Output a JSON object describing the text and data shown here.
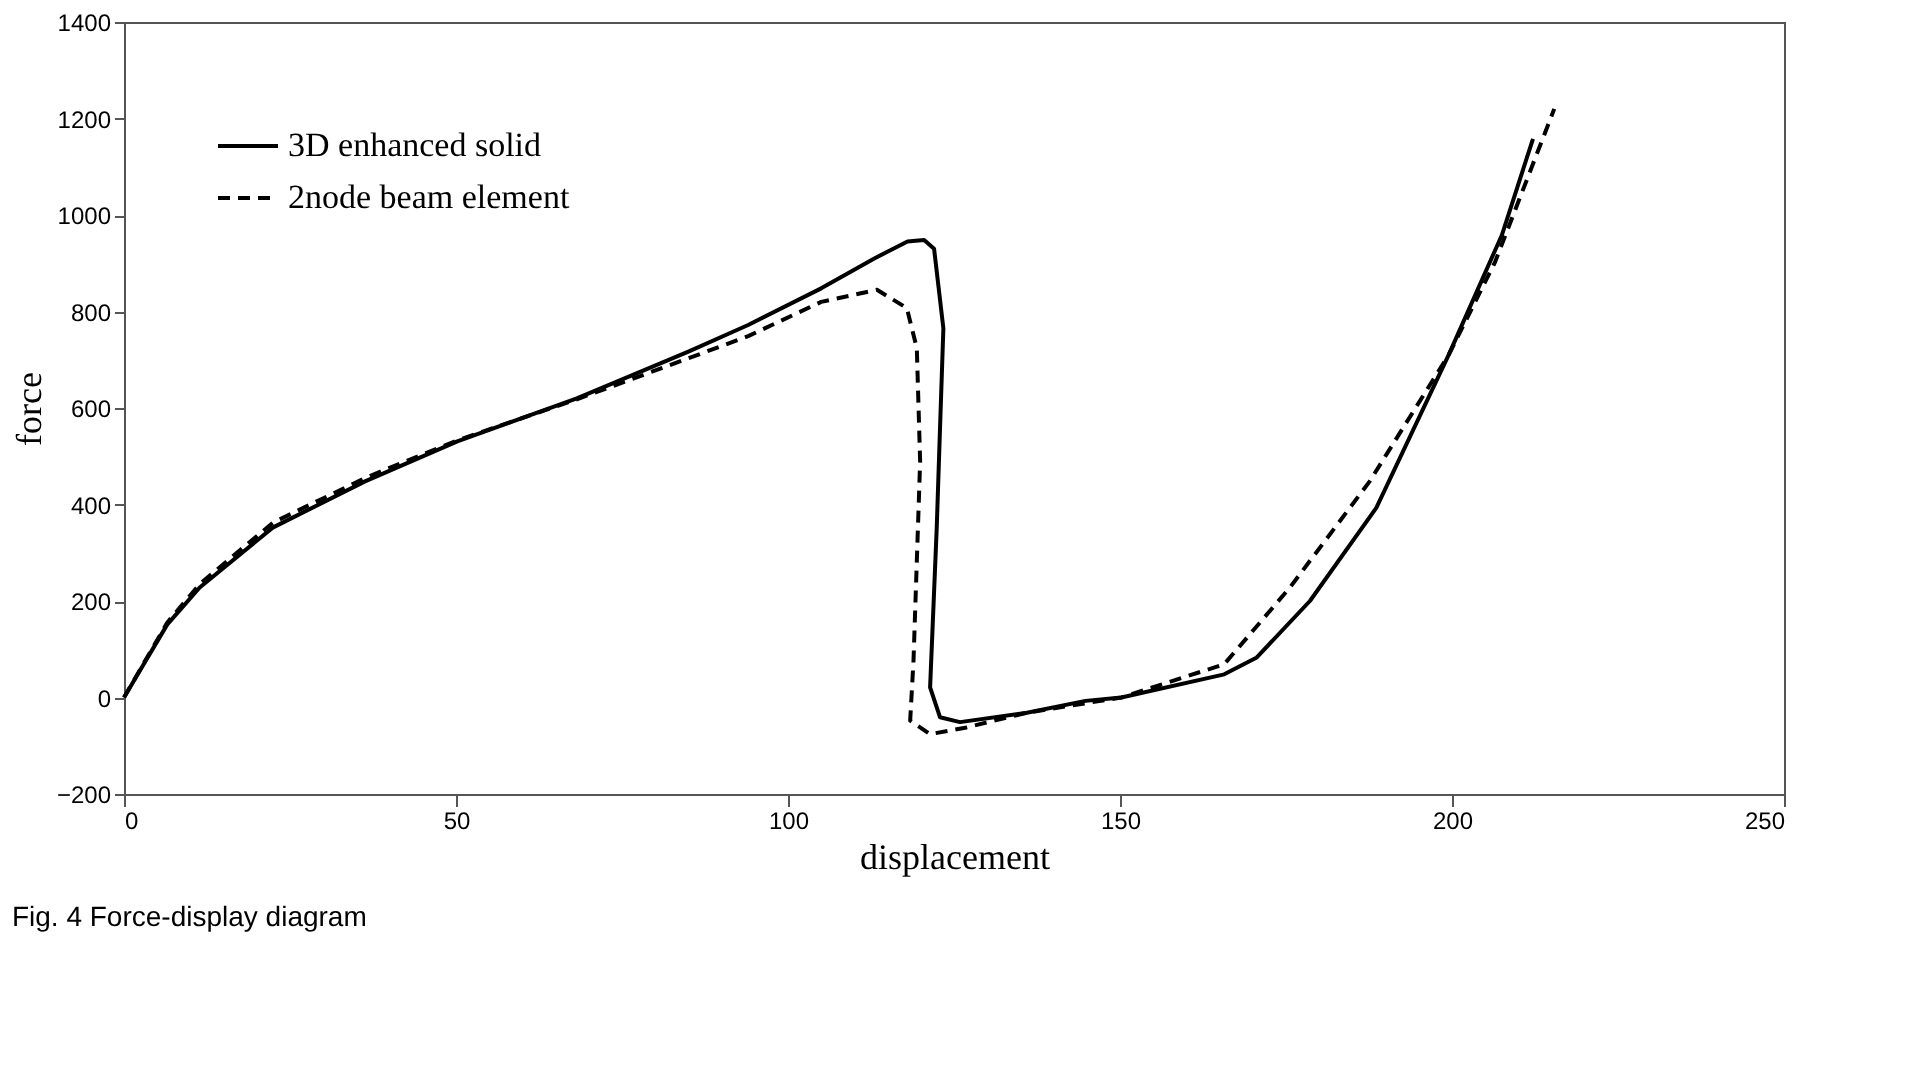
{
  "chart_data": {
    "type": "line",
    "xlabel": "displacement",
    "ylabel": "force",
    "xlim": [
      0,
      250
    ],
    "ylim": [
      -200,
      1400
    ],
    "xticks": [
      0,
      50,
      100,
      150,
      200,
      250
    ],
    "yticks": [
      -200,
      0,
      200,
      400,
      600,
      800,
      1000,
      1200,
      1400
    ],
    "grid": false,
    "legend": "top left",
    "marker": "none",
    "annotations": [
      "Fig. 4  Force-display diagram"
    ],
    "series": [
      {
        "name": "3D enhanced solid",
        "color": "#000000",
        "line_style": "solid",
        "x": [
          0,
          6.5,
          11.4,
          22.4,
          36.3,
          50.2,
          68.2,
          85,
          94,
          105,
          113,
          118,
          120.5,
          122,
          123.4,
          122.9,
          122.4,
          121.4,
          122.9,
          125.9,
          135.8,
          144.8,
          150.2,
          165.7,
          170.6,
          178.6,
          188.6,
          199.5,
          207.5,
          212.2
        ],
        "values": [
          0,
          151,
          228,
          352,
          448,
          531,
          620,
          717,
          772,
          848,
          910,
          945,
          948,
          930,
          765,
          560,
          352,
          21,
          -41,
          -51,
          -32,
          -7,
          0,
          48,
          83,
          200,
          393,
          710,
          958,
          1158
        ]
      },
      {
        "name": "2node beam element",
        "color": "#000000",
        "line_style": "dashed",
        "x": [
          0,
          6.5,
          11.4,
          22.4,
          36.3,
          50.2,
          68.2,
          85,
          94,
          105,
          113.4,
          117.9,
          119.4,
          119.9,
          118.9,
          118.4,
          121.4,
          126.9,
          135.8,
          150.2,
          165.7,
          175.6,
          187.6,
          199.5,
          206.5,
          215.4
        ],
        "values": [
          0,
          155,
          235,
          362,
          455,
          533,
          618,
          703,
          749,
          820,
          845,
          807,
          724,
          489,
          76,
          -48,
          -76,
          -62,
          -32,
          0,
          69,
          228,
          448,
          710,
          903,
          1220
        ]
      }
    ]
  }
}
